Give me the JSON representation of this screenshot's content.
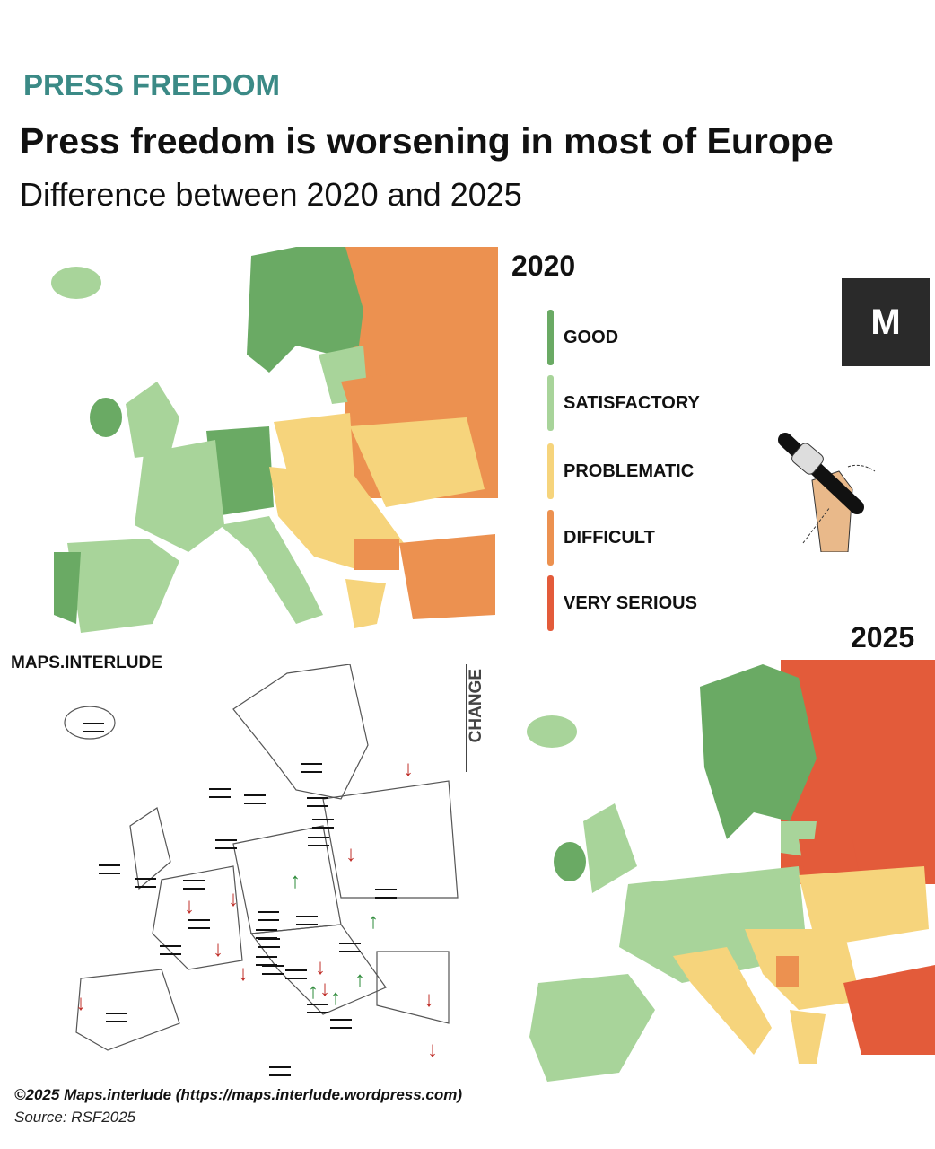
{
  "header": {
    "kicker": "PRESS FREEDOM",
    "title": "Press freedom is worsening in most of Europe",
    "subtitle": "Difference between 2020 and 2025"
  },
  "maps": {
    "year_2020": "2020",
    "year_2025": "2025",
    "change_label": "CHANGE",
    "brand": "MAPS.INTERLUDE"
  },
  "legend": [
    {
      "label": "GOOD",
      "color": "#6aaa64"
    },
    {
      "label": "SATISFACTORY",
      "color": "#a8d49a"
    },
    {
      "label": "PROBLEMATIC",
      "color": "#f6d47c"
    },
    {
      "label": "DIFFICULT",
      "color": "#ec9150"
    },
    {
      "label": "VERY SERIOUS",
      "color": "#e35b3a"
    }
  ],
  "logo": {
    "text": "M"
  },
  "change_symbols": {
    "same": "=",
    "worse": "↓",
    "better": "↑",
    "worse_color": "#c0312b",
    "better_color": "#2e8b3a"
  },
  "footer": {
    "credit": "©2025 Maps.interlude (https://maps.interlude.wordpress.com)",
    "source": "Source: RSF2025"
  }
}
